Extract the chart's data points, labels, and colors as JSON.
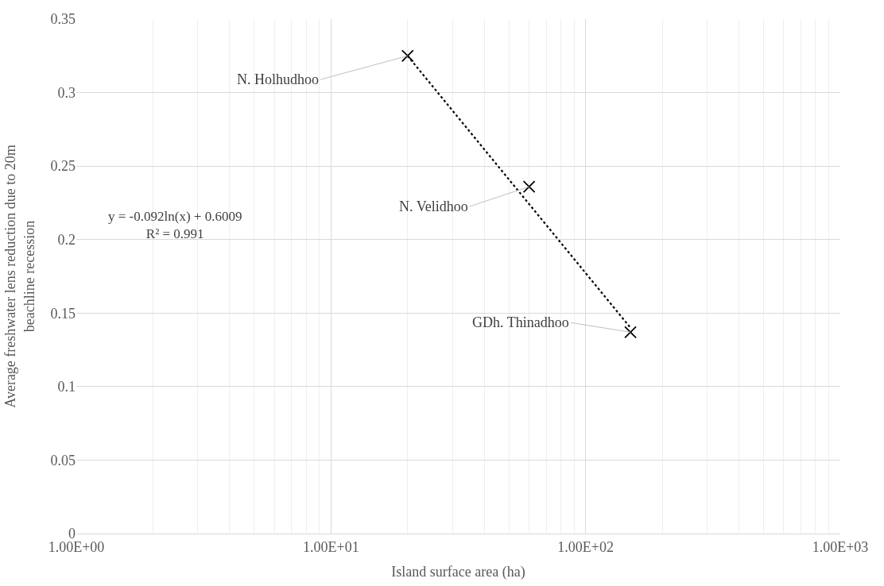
{
  "chart_data": {
    "type": "scatter",
    "xlabel": "Island surface area (ha)",
    "ylabel": "Average freshwater lens reduction due to 20m\nbeachline recession",
    "series": [
      {
        "color": "#000000",
        "marker": "cross",
        "x": [
          20,
          60,
          150
        ],
        "values": [
          0.325,
          0.236,
          0.137
        ]
      },
      {
        "type": "line",
        "color": "#000000",
        "marker": "none",
        "line_style": "dotted",
        "x": [
          20,
          150
        ],
        "values": [
          0.325,
          0.14
        ]
      }
    ],
    "log": "x",
    "xlim": [
      1,
      1000
    ],
    "xticks": [
      {
        "value": 1,
        "label": "1.00E+00"
      },
      {
        "value": 10,
        "label": "1.00E+01"
      },
      {
        "value": 100,
        "label": "1.00E+02"
      },
      {
        "value": 1000,
        "label": "1.00E+03"
      }
    ],
    "ylim": [
      0,
      0.35
    ],
    "yticks": [
      0,
      0.05,
      0.1,
      0.15,
      0.2,
      0.25,
      0.3,
      0.35
    ],
    "grid": true,
    "annotations": [
      {
        "text": "N. Holhudhoo",
        "x": 20,
        "y": 0.325
      },
      {
        "text": "N. Velidhoo",
        "x": 60,
        "y": 0.236
      },
      {
        "text": "GDh. Thinadhoo",
        "x": 150,
        "y": 0.137
      },
      "y = -0.092ln(x) + 0.6009\nR² = 0.991"
    ]
  }
}
